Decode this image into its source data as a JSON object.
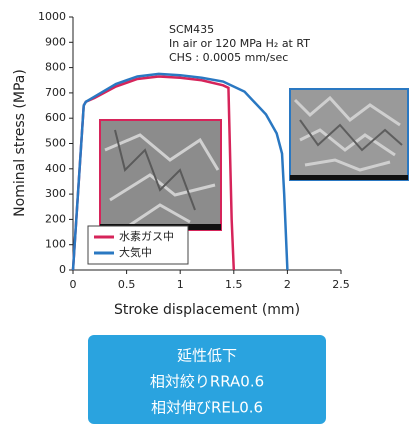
{
  "chart_data": {
    "type": "line",
    "x_label": "Stroke displacement (mm)",
    "y_label": "Nominal stress (MPa)",
    "annotations": [
      "SCM435",
      "In air or 120 MPa H₂ at RT",
      "CHS : 0.0005 mm/sec"
    ],
    "series": [
      {
        "name": "水素ガス中",
        "color": "#d6245a",
        "x": [
          0,
          0.1,
          0.12,
          0.2,
          0.4,
          0.6,
          0.8,
          1.0,
          1.2,
          1.4,
          1.45,
          1.48,
          1.5
        ],
        "values": [
          0,
          650,
          665,
          680,
          725,
          755,
          765,
          760,
          750,
          730,
          720,
          200,
          0
        ]
      },
      {
        "name": "大気中",
        "color": "#2a78c2",
        "x": [
          0,
          0.1,
          0.12,
          0.2,
          0.4,
          0.6,
          0.8,
          1.0,
          1.2,
          1.4,
          1.6,
          1.8,
          1.9,
          1.95,
          1.97,
          2.0
        ],
        "values": [
          0,
          650,
          665,
          685,
          735,
          765,
          775,
          770,
          760,
          745,
          705,
          615,
          540,
          460,
          300,
          0
        ]
      }
    ],
    "xlim": [
      0,
      2.5
    ],
    "xticks": [
      0,
      0.5,
      1,
      1.5,
      2,
      2.5
    ],
    "ylim": [
      0,
      1000
    ],
    "yticks": [
      0,
      100,
      200,
      300,
      400,
      500,
      600,
      700,
      800,
      900,
      1000
    ],
    "legend": "lower left",
    "callout": [
      "延性低下",
      "相対絞りRRA0.6",
      "相対伸びREL0.6"
    ]
  }
}
